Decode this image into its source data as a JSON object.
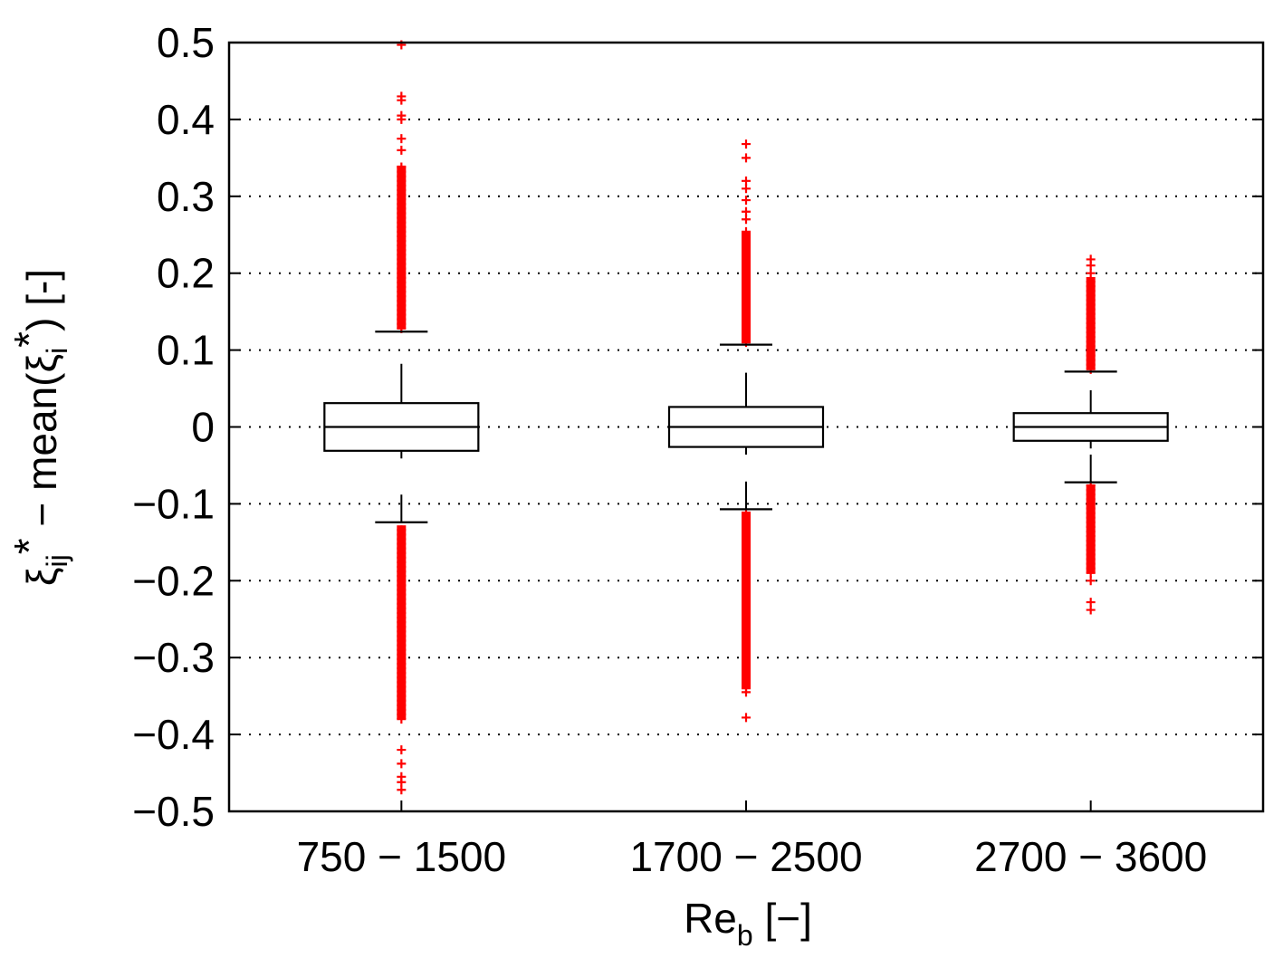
{
  "chart_data": {
    "type": "box",
    "xlabel": {
      "main": "Re",
      "sub": "b",
      "suffix": " [−]"
    },
    "ylabel": {
      "xi": "ξ",
      "xi_sub": "ij",
      "star": "*",
      "mid": " − mean(",
      "xi2": "ξ",
      "xi2_sub": "i",
      "star2": "*",
      "suffix": ") [-]"
    },
    "ylim": [
      -0.5,
      0.5
    ],
    "yticks": [
      -0.5,
      -0.4,
      -0.3,
      -0.2,
      -0.1,
      0,
      0.1,
      0.2,
      0.3,
      0.4,
      0.5
    ],
    "ytick_labels": [
      "−0.5",
      "−0.4",
      "−0.3",
      "−0.2",
      "−0.1",
      "0",
      "0.1",
      "0.2",
      "0.3",
      "0.4",
      "0.5"
    ],
    "grid": "horizontal-dotted",
    "categories": [
      "750 − 1500",
      "1700 − 2500",
      "2700 − 3600"
    ],
    "boxes": [
      {
        "median": 0.0,
        "q1": -0.031,
        "q3": 0.031,
        "whisker_low": -0.124,
        "whisker_high": 0.124,
        "outlier_range_high": [
          0.128,
          0.34
        ],
        "outlier_range_low": [
          -0.38,
          -0.128
        ],
        "outliers_extra": [
          0.36,
          0.375,
          0.4,
          0.405,
          0.425,
          0.43,
          0.497,
          -0.42,
          -0.438,
          -0.455,
          -0.462,
          -0.472
        ]
      },
      {
        "median": 0.0,
        "q1": -0.026,
        "q3": 0.026,
        "whisker_low": -0.107,
        "whisker_high": 0.107,
        "outlier_range_high": [
          0.11,
          0.255
        ],
        "outlier_range_low": [
          -0.34,
          -0.11
        ],
        "outliers_extra": [
          0.27,
          0.28,
          0.295,
          0.31,
          0.32,
          0.35,
          0.368,
          -0.345,
          -0.378
        ]
      },
      {
        "median": 0.0,
        "q1": -0.018,
        "q3": 0.018,
        "whisker_low": -0.072,
        "whisker_high": 0.072,
        "outlier_range_high": [
          0.075,
          0.195
        ],
        "outlier_range_low": [
          -0.19,
          -0.075
        ],
        "outliers_extra": [
          0.2,
          0.21,
          0.218,
          -0.2,
          -0.228,
          -0.238
        ]
      }
    ],
    "colors": {
      "outlier": "#ff0000",
      "box": "#000000",
      "grid": "#000000"
    }
  }
}
